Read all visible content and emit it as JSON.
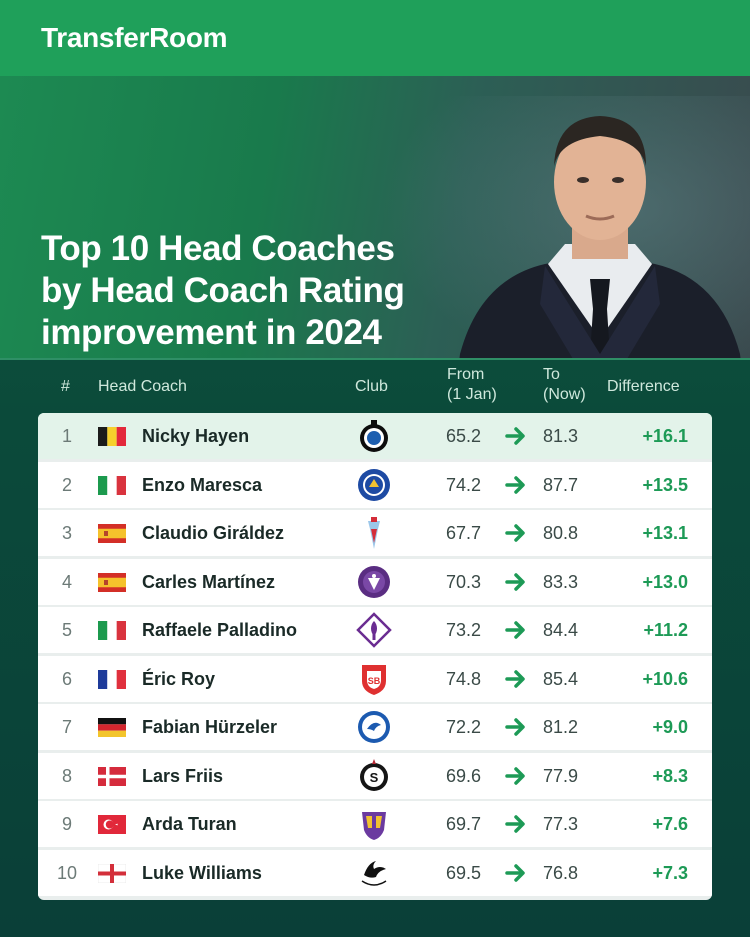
{
  "brand": "TransferRoom",
  "title_lines": [
    "Top 10 Head Coaches",
    "by Head Coach Rating",
    "improvement in 2024"
  ],
  "headers": {
    "rank": "#",
    "coach": "Head Coach",
    "club": "Club",
    "from_line1": "From",
    "from_line2": "(1 Jan)",
    "to_line1": "To",
    "to_line2": "(Now)",
    "difference": "Difference"
  },
  "colors": {
    "brand_green": "#1fa05a",
    "positive": "#1d9a56",
    "highlight_row": "#e3f3ea"
  },
  "rows": [
    {
      "rank": "1",
      "name": "Nicky Hayen",
      "flag": "belgium",
      "club_icon": "club-brugge-crest-icon",
      "from": "65.2",
      "to": "81.3",
      "diff": "+16.1"
    },
    {
      "rank": "2",
      "name": "Enzo Maresca",
      "flag": "italy",
      "club_icon": "chelsea-crest-icon",
      "from": "74.2",
      "to": "87.7",
      "diff": "+13.5"
    },
    {
      "rank": "3",
      "name": "Claudio Giráldez",
      "flag": "spain",
      "club_icon": "celta-vigo-crest-icon",
      "from": "67.7",
      "to": "80.8",
      "diff": "+13.1"
    },
    {
      "rank": "4",
      "name": "Carles Martínez",
      "flag": "spain",
      "club_icon": "toulouse-crest-icon",
      "from": "70.3",
      "to": "83.3",
      "diff": "+13.0"
    },
    {
      "rank": "5",
      "name": "Raffaele Palladino",
      "flag": "italy",
      "club_icon": "fiorentina-crest-icon",
      "from": "73.2",
      "to": "84.4",
      "diff": "+11.2"
    },
    {
      "rank": "6",
      "name": "Éric Roy",
      "flag": "france",
      "club_icon": "brest-crest-icon",
      "from": "74.8",
      "to": "85.4",
      "diff": "+10.6"
    },
    {
      "rank": "7",
      "name": "Fabian Hürzeler",
      "flag": "germany",
      "club_icon": "brighton-crest-icon",
      "from": "72.2",
      "to": "81.2",
      "diff": "+9.0"
    },
    {
      "rank": "8",
      "name": "Lars Friis",
      "flag": "denmark",
      "club_icon": "sparta-praha-crest-icon",
      "from": "69.6",
      "to": "77.9",
      "diff": "+8.3"
    },
    {
      "rank": "9",
      "name": "Arda Turan",
      "flag": "turkey",
      "club_icon": "eyupspor-crest-icon",
      "from": "69.7",
      "to": "77.3",
      "diff": "+7.6"
    },
    {
      "rank": "10",
      "name": "Luke Williams",
      "flag": "england",
      "club_icon": "swansea-crest-icon",
      "from": "69.5",
      "to": "76.8",
      "diff": "+7.3"
    }
  ]
}
